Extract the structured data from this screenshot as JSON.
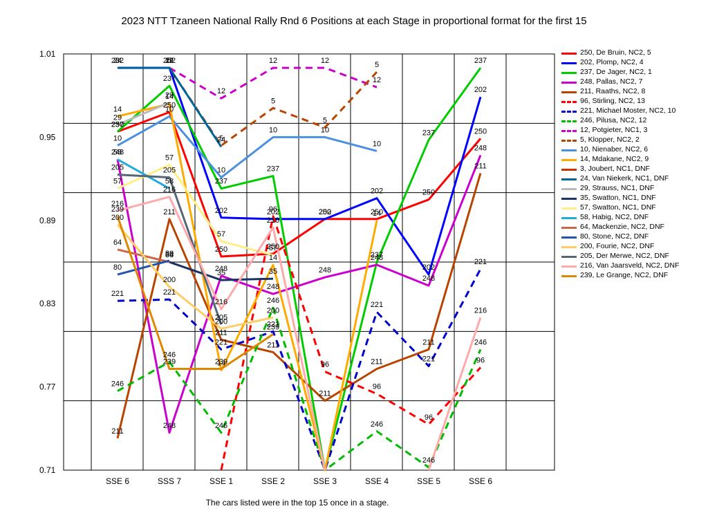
{
  "chart_data": {
    "type": "line",
    "title": "2023 NTT Tzaneen National Rally Rnd 6  Positions at each Stage in proportional format for the first 15",
    "footer": "The cars listed were in the top 15 once in a stage.",
    "categories": [
      "SSE 6",
      "SSS 7",
      "SSE 1",
      "SSE 2",
      "SSE 3",
      "SSE 4",
      "SSE 5",
      "SSE 6"
    ],
    "y_ticks": [
      "1.01",
      "0.95",
      "0.89",
      "0.83",
      "0.77",
      "0.71"
    ],
    "ylim": [
      0.71,
      1.01
    ],
    "grid": true,
    "legend_position": "right",
    "series": [
      {
        "name": "250, De Bruin, NC2, 5",
        "label": "250",
        "color": "#ff0000",
        "dash": false,
        "values": [
          0.954,
          0.968,
          0.864,
          0.866,
          0.891,
          0.891,
          0.905,
          0.949
        ]
      },
      {
        "name": "202, Plomp, NC2, 4",
        "label": "202",
        "color": "#0000ff",
        "dash": false,
        "values": [
          1.0,
          1.0,
          0.892,
          0.891,
          0.891,
          0.906,
          0.851,
          0.979
        ]
      },
      {
        "name": "237, De Jager, NC2, 1",
        "label": "237",
        "color": "#00cc00",
        "dash": false,
        "values": [
          0.954,
          0.987,
          0.913,
          0.922,
          0.69,
          0.86,
          0.948,
          1.0
        ]
      },
      {
        "name": "248, Pallas, NC2, 7",
        "label": "248",
        "color": "#cc00cc",
        "dash": false,
        "values": [
          0.934,
          0.737,
          0.85,
          0.837,
          0.849,
          0.858,
          0.843,
          0.937
        ]
      },
      {
        "name": "211, Raaths, NC2, 8",
        "label": "211",
        "color": "#b84400",
        "dash": false,
        "values": [
          0.733,
          0.891,
          0.804,
          0.795,
          0.76,
          0.783,
          0.797,
          0.924
        ]
      },
      {
        "name": "96, Stirling, NC2, 13",
        "label": "96",
        "color": "#ff0000",
        "dash": true,
        "values": [
          null,
          null,
          0.71,
          0.893,
          0.781,
          0.765,
          0.743,
          0.784
        ]
      },
      {
        "name": "221, Michael Moster, NC2, 10",
        "label": "221",
        "color": "#0000cc",
        "dash": true,
        "values": [
          0.832,
          0.833,
          0.797,
          0.81,
          0.69,
          0.824,
          0.785,
          0.855
        ]
      },
      {
        "name": "246, Pilusa, NC2, 12",
        "label": "246",
        "color": "#00bb00",
        "dash": true,
        "values": [
          0.767,
          0.788,
          0.737,
          0.827,
          0.69,
          0.738,
          0.712,
          0.797
        ]
      },
      {
        "name": "12, Potgieter, NC1, 3",
        "label": "12",
        "color": "#cc00cc",
        "dash": true,
        "values": [
          null,
          1.0,
          0.978,
          1.0,
          1.0,
          0.986,
          null,
          null
        ]
      },
      {
        "name": "5, Klopper, NC2, 2",
        "label": "5",
        "color": "#b84400",
        "dash": true,
        "values": [
          null,
          1.0,
          0.944,
          0.971,
          0.957,
          0.997,
          null,
          null
        ]
      },
      {
        "name": "10, Nienaber, NC2, 6",
        "label": "10",
        "color": "#4a90e2",
        "dash": false,
        "values": [
          0.944,
          0.965,
          0.921,
          0.95,
          0.95,
          0.94,
          null,
          null
        ]
      },
      {
        "name": "14, Mdakane, NC2, 9",
        "label": "14",
        "color": "#ffaa00",
        "dash": false,
        "values": [
          0.965,
          0.974,
          0.782,
          0.858,
          0.69,
          0.89,
          null,
          null
        ]
      },
      {
        "name": "3, Joubert, NC1,  DNF",
        "label": "3",
        "color": "#cc3300",
        "dash": false,
        "values": [
          1.0,
          null,
          null,
          null,
          null,
          null,
          null,
          null
        ]
      },
      {
        "name": "24, Van Niekerk, NC1,  DNF",
        "label": "24",
        "color": "#006699",
        "dash": false,
        "values": [
          1.0,
          1.0,
          0.943,
          null,
          null,
          null,
          null,
          null
        ]
      },
      {
        "name": "29, Strauss, NC1,  DNF",
        "label": "29",
        "color": "#bbbbbb",
        "dash": false,
        "values": [
          0.959,
          0.975,
          null,
          null,
          null,
          null,
          null,
          null
        ]
      },
      {
        "name": "35, Swatton, NC1,  DNF",
        "label": "35",
        "color": "#1a3366",
        "dash": false,
        "values": [
          null,
          0.86,
          0.847,
          0.848,
          null,
          null,
          null,
          null
        ]
      },
      {
        "name": "57, Swatton, NC1,  DNF",
        "label": "57",
        "color": "#ffee88",
        "dash": false,
        "values": [
          0.913,
          0.93,
          0.875,
          0.865,
          null,
          null,
          null,
          null
        ]
      },
      {
        "name": "58, Habig, NC2,  DNF",
        "label": "58",
        "color": "#22aadd",
        "dash": false,
        "values": [
          0.934,
          0.913,
          null,
          null,
          null,
          null,
          null,
          null
        ]
      },
      {
        "name": "64, Mackenzie, NC2,  DNF",
        "label": "64",
        "color": "#cc6644",
        "dash": false,
        "values": [
          0.869,
          0.86,
          null,
          null,
          null,
          null,
          null,
          null
        ]
      },
      {
        "name": "80, Stone, NC2,  DNF",
        "label": "80",
        "color": "#2255aa",
        "dash": false,
        "values": [
          0.851,
          0.861,
          null,
          null,
          null,
          null,
          null,
          null
        ]
      },
      {
        "name": "200, Fourie, NC2,  DNF",
        "label": "200",
        "color": "#ffcc66",
        "dash": false,
        "values": [
          0.887,
          0.842,
          0.812,
          0.82,
          null,
          null,
          null,
          null
        ]
      },
      {
        "name": "205, Der Merwe, NC2,  DNF",
        "label": "205",
        "color": "#556677",
        "dash": false,
        "values": [
          0.923,
          0.921,
          0.815,
          null,
          null,
          null,
          null,
          null
        ]
      },
      {
        "name": "216, Van Jaarsveld, NC2, DNF",
        "label": "216",
        "color": "#ffaaaa",
        "dash": false,
        "values": [
          0.897,
          0.907,
          0.826,
          0.885,
          0.69,
          null,
          0.69,
          0.82
        ]
      },
      {
        "name": "239, Le Grange, NC2,  DNF",
        "label": "239",
        "color": "#dd8800",
        "dash": false,
        "values": [
          0.893,
          0.783,
          0.783,
          0.808,
          null,
          null,
          null,
          null
        ]
      }
    ]
  }
}
